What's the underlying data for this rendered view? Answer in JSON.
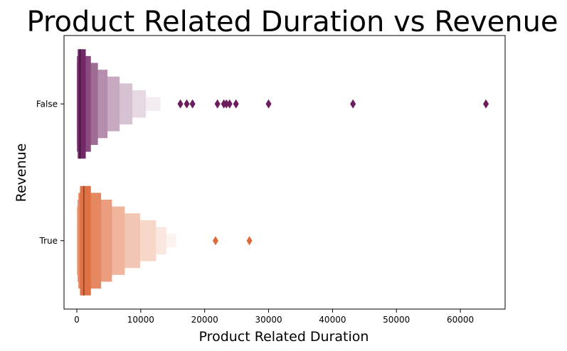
{
  "chart_data": {
    "type": "boxenplot",
    "title": "Product Related Duration vs Revenue",
    "xlabel": "Product Related Duration",
    "ylabel": "Revenue",
    "xlim": [
      -2000,
      67000
    ],
    "xticks": [
      0,
      10000,
      20000,
      30000,
      40000,
      50000,
      60000
    ],
    "xtick_labels": [
      "0",
      "10000",
      "20000",
      "30000",
      "40000",
      "50000",
      "60000"
    ],
    "categories": [
      "False",
      "True"
    ],
    "grid": false,
    "series": [
      {
        "category": "False",
        "color": "#6b1d5e",
        "median": 500,
        "letter_values": [
          {
            "low": 150,
            "high": 1400,
            "shade": 0.95
          },
          {
            "low": 20,
            "high": 2200,
            "shade": 0.8
          },
          {
            "low": 0,
            "high": 3300,
            "shade": 0.65
          },
          {
            "low": 0,
            "high": 4800,
            "shade": 0.5
          },
          {
            "low": 0,
            "high": 6700,
            "shade": 0.38
          },
          {
            "low": 0,
            "high": 8700,
            "shade": 0.27
          },
          {
            "low": 0,
            "high": 10800,
            "shade": 0.17
          },
          {
            "low": 0,
            "high": 13100,
            "shade": 0.08
          }
        ],
        "outliers": [
          16200,
          17200,
          18100,
          22000,
          23000,
          23400,
          23900,
          24900,
          30000,
          43200,
          64000
        ]
      },
      {
        "category": "True",
        "color": "#de6a3a",
        "median": 1100,
        "letter_values": [
          {
            "low": 500,
            "high": 2200,
            "shade": 0.95
          },
          {
            "low": 250,
            "high": 3800,
            "shade": 0.8
          },
          {
            "low": 100,
            "high": 5500,
            "shade": 0.65
          },
          {
            "low": 0,
            "high": 7500,
            "shade": 0.5
          },
          {
            "low": 0,
            "high": 9900,
            "shade": 0.38
          },
          {
            "low": 0,
            "high": 12400,
            "shade": 0.27
          },
          {
            "low": 0,
            "high": 14000,
            "shade": 0.17
          },
          {
            "low": 0,
            "high": 15500,
            "shade": 0.08
          }
        ],
        "outliers": [
          21700,
          27000
        ]
      }
    ]
  }
}
